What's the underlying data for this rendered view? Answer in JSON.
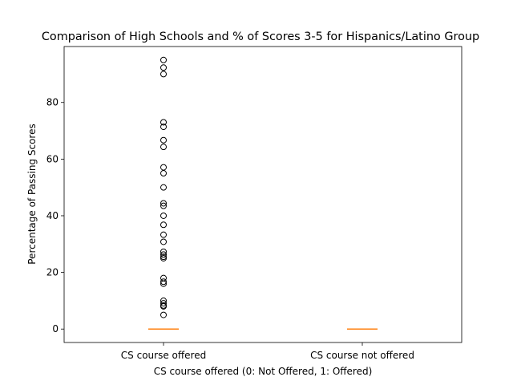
{
  "chart_data": {
    "type": "box",
    "title": "Comparison of High Schools and % of Scores 3-5 for Hispanics/Latino Group",
    "xlabel": "CS course offered (0: Not Offered, 1: Offered)",
    "ylabel": "Percentage of Passing Scores",
    "categories": [
      "CS course offered",
      "CS course not offered"
    ],
    "ylim": [
      -4.75,
      99.75
    ],
    "yticks": [
      0,
      20,
      40,
      60,
      80
    ],
    "grid": false,
    "boxes": [
      {
        "category": "CS course offered",
        "q1": 0,
        "median": 0,
        "q3": 0,
        "whisker_low": 0,
        "whisker_high": 0,
        "outliers": [
          95,
          92.3,
          90,
          73,
          71.4,
          66.7,
          64.3,
          57.1,
          55,
          50,
          44.4,
          43.5,
          40,
          36.8,
          33.3,
          30.8,
          27.3,
          26.3,
          25.5,
          25,
          18,
          16.7,
          16,
          10,
          9.1,
          8.3,
          8,
          5
        ]
      },
      {
        "category": "CS course not offered",
        "q1": 0,
        "median": 0,
        "q3": 0,
        "whisker_low": 0,
        "whisker_high": 0,
        "outliers": []
      }
    ],
    "colors": {
      "median": "#ff7f0e",
      "outlier_edge": "#000000",
      "axis": "#000000"
    }
  }
}
